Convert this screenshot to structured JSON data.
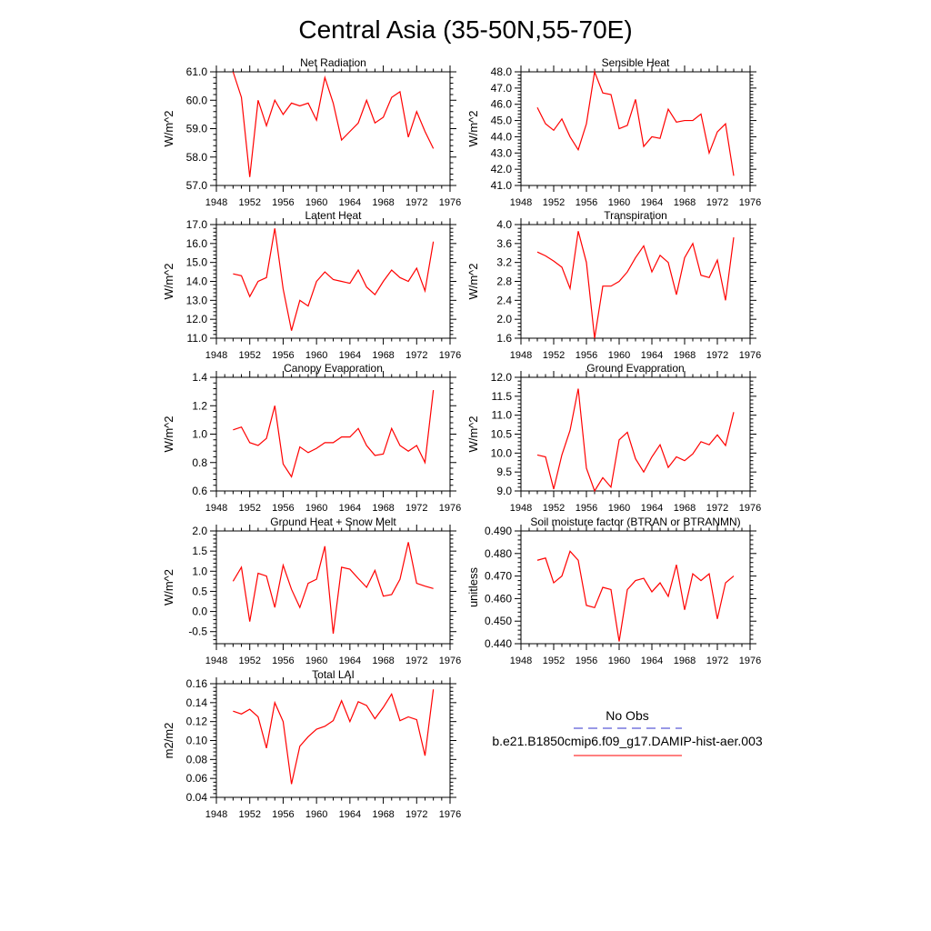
{
  "page_title": "Central Asia (35-50N,55-70E)",
  "legend": {
    "obs_label": "No Obs",
    "model_label": "b.e21.B1850cmip6.f09_g17.DAMIP-hist-aer.003",
    "obs_color": "#3333cc",
    "model_color": "#ff0000"
  },
  "chart_data": [
    {
      "type": "line",
      "title": "Net Radiation",
      "ylabel": "W/m^2",
      "xlim": [
        1948,
        1976
      ],
      "ylim": [
        57.0,
        61.0
      ],
      "xticks": [
        1948,
        1952,
        1956,
        1960,
        1964,
        1968,
        1972,
        1976
      ],
      "yticks": [
        57.0,
        58.0,
        59.0,
        60.0,
        61.0
      ],
      "ytick_labels": [
        "57.0",
        "58.0",
        "59.0",
        "60.0",
        "61.0"
      ],
      "x": [
        1950,
        1951,
        1952,
        1953,
        1954,
        1955,
        1956,
        1957,
        1958,
        1959,
        1960,
        1961,
        1962,
        1963,
        1964,
        1965,
        1966,
        1967,
        1968,
        1969,
        1970,
        1971,
        1972,
        1973,
        1974
      ],
      "series": [
        {
          "color": "#ff0000",
          "values": [
            61.0,
            60.1,
            57.3,
            60.0,
            59.1,
            60.0,
            59.5,
            59.9,
            59.8,
            59.9,
            59.3,
            60.8,
            59.9,
            58.6,
            58.9,
            59.2,
            60.0,
            59.2,
            59.4,
            60.1,
            60.3,
            58.7,
            59.6,
            58.9,
            58.3
          ]
        }
      ]
    },
    {
      "type": "line",
      "title": "Sensible Heat",
      "ylabel": "W/m^2",
      "xlim": [
        1948,
        1976
      ],
      "ylim": [
        41.0,
        48.0
      ],
      "xticks": [
        1948,
        1952,
        1956,
        1960,
        1964,
        1968,
        1972,
        1976
      ],
      "yticks": [
        41,
        42,
        43,
        44,
        45,
        46,
        47,
        48
      ],
      "ytick_labels": [
        "41.0",
        "42.0",
        "43.0",
        "44.0",
        "45.0",
        "46.0",
        "47.0",
        "48.0"
      ],
      "x": [
        1950,
        1951,
        1952,
        1953,
        1954,
        1955,
        1956,
        1957,
        1958,
        1959,
        1960,
        1961,
        1962,
        1963,
        1964,
        1965,
        1966,
        1967,
        1968,
        1969,
        1970,
        1971,
        1972,
        1973,
        1974
      ],
      "series": [
        {
          "color": "#ff0000",
          "values": [
            45.8,
            44.8,
            44.4,
            45.1,
            44.0,
            43.2,
            44.8,
            48.0,
            46.7,
            46.6,
            44.5,
            44.7,
            46.3,
            43.4,
            44.0,
            43.9,
            45.7,
            44.9,
            45.0,
            45.0,
            45.4,
            43.0,
            44.3,
            44.8,
            41.6
          ]
        }
      ]
    },
    {
      "type": "line",
      "title": "Latent Heat",
      "ylabel": "W/m^2",
      "xlim": [
        1948,
        1976
      ],
      "ylim": [
        11.0,
        17.0
      ],
      "xticks": [
        1948,
        1952,
        1956,
        1960,
        1964,
        1968,
        1972,
        1976
      ],
      "yticks": [
        11,
        12,
        13,
        14,
        15,
        16,
        17
      ],
      "ytick_labels": [
        "11.0",
        "12.0",
        "13.0",
        "14.0",
        "15.0",
        "16.0",
        "17.0"
      ],
      "x": [
        1950,
        1951,
        1952,
        1953,
        1954,
        1955,
        1956,
        1957,
        1958,
        1959,
        1960,
        1961,
        1962,
        1963,
        1964,
        1965,
        1966,
        1967,
        1968,
        1969,
        1970,
        1971,
        1972,
        1973,
        1974
      ],
      "series": [
        {
          "color": "#ff0000",
          "values": [
            14.4,
            14.3,
            13.2,
            14.0,
            14.2,
            16.8,
            13.6,
            11.4,
            13.0,
            12.7,
            14.0,
            14.5,
            14.1,
            14.0,
            13.9,
            14.6,
            13.7,
            13.3,
            14.0,
            14.6,
            14.2,
            14.0,
            14.7,
            13.5,
            16.1
          ]
        }
      ]
    },
    {
      "type": "line",
      "title": "Transpiration",
      "ylabel": "W/m^2",
      "xlim": [
        1948,
        1976
      ],
      "ylim": [
        1.6,
        4.0
      ],
      "xticks": [
        1948,
        1952,
        1956,
        1960,
        1964,
        1968,
        1972,
        1976
      ],
      "yticks": [
        1.6,
        2.0,
        2.4,
        2.8,
        3.2,
        3.6,
        4.0
      ],
      "ytick_labels": [
        "1.6",
        "2.0",
        "2.4",
        "2.8",
        "3.2",
        "3.6",
        "4.0"
      ],
      "x": [
        1950,
        1951,
        1952,
        1953,
        1954,
        1955,
        1956,
        1957,
        1958,
        1959,
        1960,
        1961,
        1962,
        1963,
        1964,
        1965,
        1966,
        1967,
        1968,
        1969,
        1970,
        1971,
        1972,
        1973,
        1974
      ],
      "series": [
        {
          "color": "#ff0000",
          "values": [
            3.42,
            3.34,
            3.23,
            3.1,
            2.65,
            3.86,
            3.2,
            1.6,
            2.7,
            2.7,
            2.8,
            3.0,
            3.3,
            3.55,
            3.0,
            3.35,
            3.2,
            2.52,
            3.3,
            3.6,
            2.93,
            2.88,
            3.25,
            2.4,
            3.73
          ]
        }
      ]
    },
    {
      "type": "line",
      "title": "Canopy Evaporation",
      "ylabel": "W/m^2",
      "xlim": [
        1948,
        1976
      ],
      "ylim": [
        0.6,
        1.4
      ],
      "xticks": [
        1948,
        1952,
        1956,
        1960,
        1964,
        1968,
        1972,
        1976
      ],
      "yticks": [
        0.6,
        0.8,
        1.0,
        1.2,
        1.4
      ],
      "ytick_labels": [
        "0.6",
        "0.8",
        "1.0",
        "1.2",
        "1.4"
      ],
      "x": [
        1950,
        1951,
        1952,
        1953,
        1954,
        1955,
        1956,
        1957,
        1958,
        1959,
        1960,
        1961,
        1962,
        1963,
        1964,
        1965,
        1966,
        1967,
        1968,
        1969,
        1970,
        1971,
        1972,
        1973,
        1974
      ],
      "series": [
        {
          "color": "#ff0000",
          "values": [
            1.03,
            1.05,
            0.94,
            0.92,
            0.97,
            1.2,
            0.79,
            0.7,
            0.91,
            0.87,
            0.9,
            0.94,
            0.94,
            0.98,
            0.98,
            1.04,
            0.92,
            0.85,
            0.86,
            1.04,
            0.92,
            0.88,
            0.92,
            0.8,
            1.31
          ]
        }
      ]
    },
    {
      "type": "line",
      "title": "Ground Evaporation",
      "ylabel": "W/m^2",
      "xlim": [
        1948,
        1976
      ],
      "ylim": [
        9.0,
        12.0
      ],
      "xticks": [
        1948,
        1952,
        1956,
        1960,
        1964,
        1968,
        1972,
        1976
      ],
      "yticks": [
        9.0,
        9.5,
        10.0,
        10.5,
        11.0,
        11.5,
        12.0
      ],
      "ytick_labels": [
        "9.0",
        "9.5",
        "10.0",
        "10.5",
        "11.0",
        "11.5",
        "12.0"
      ],
      "x": [
        1950,
        1951,
        1952,
        1953,
        1954,
        1955,
        1956,
        1957,
        1958,
        1959,
        1960,
        1961,
        1962,
        1963,
        1964,
        1965,
        1966,
        1967,
        1968,
        1969,
        1970,
        1971,
        1972,
        1973,
        1974
      ],
      "series": [
        {
          "color": "#ff0000",
          "values": [
            9.95,
            9.9,
            9.05,
            9.95,
            10.6,
            11.7,
            9.6,
            9.0,
            9.35,
            9.1,
            10.35,
            10.55,
            9.85,
            9.5,
            9.9,
            10.22,
            9.62,
            9.9,
            9.8,
            9.98,
            10.3,
            10.22,
            10.48,
            10.2,
            11.08
          ]
        }
      ]
    },
    {
      "type": "line",
      "title": "Ground Heat + Snow Melt",
      "ylabel": "W/m^2",
      "xlim": [
        1948,
        1976
      ],
      "ylim": [
        -0.8,
        2.0
      ],
      "xticks": [
        1948,
        1952,
        1956,
        1960,
        1964,
        1968,
        1972,
        1976
      ],
      "yticks": [
        -0.5,
        0.0,
        0.5,
        1.0,
        1.5,
        2.0
      ],
      "ytick_labels": [
        "-0.5",
        "0.0",
        "0.5",
        "1.0",
        "1.5",
        "2.0"
      ],
      "x": [
        1950,
        1951,
        1952,
        1953,
        1954,
        1955,
        1956,
        1957,
        1958,
        1959,
        1960,
        1961,
        1962,
        1963,
        1964,
        1965,
        1966,
        1967,
        1968,
        1969,
        1970,
        1971,
        1972,
        1973,
        1974
      ],
      "series": [
        {
          "color": "#ff0000",
          "values": [
            0.75,
            1.1,
            -0.25,
            0.95,
            0.88,
            0.1,
            1.15,
            0.55,
            0.1,
            0.7,
            0.8,
            1.62,
            -0.55,
            1.1,
            1.05,
            0.82,
            0.6,
            1.02,
            0.38,
            0.42,
            0.8,
            1.72,
            0.7,
            0.63,
            0.57
          ]
        }
      ]
    },
    {
      "type": "line",
      "title": "Soil moisture factor (BTRAN or BTRANMN)",
      "ylabel": "unitless",
      "xlim": [
        1948,
        1976
      ],
      "ylim": [
        0.44,
        0.49
      ],
      "xticks": [
        1948,
        1952,
        1956,
        1960,
        1964,
        1968,
        1972,
        1976
      ],
      "yticks": [
        0.44,
        0.45,
        0.46,
        0.47,
        0.48,
        0.49
      ],
      "ytick_labels": [
        "0.440",
        "0.450",
        "0.460",
        "0.470",
        "0.480",
        "0.490"
      ],
      "x": [
        1950,
        1951,
        1952,
        1953,
        1954,
        1955,
        1956,
        1957,
        1958,
        1959,
        1960,
        1961,
        1962,
        1963,
        1964,
        1965,
        1966,
        1967,
        1968,
        1969,
        1970,
        1971,
        1972,
        1973,
        1974
      ],
      "series": [
        {
          "color": "#ff0000",
          "values": [
            0.477,
            0.478,
            0.467,
            0.47,
            0.481,
            0.477,
            0.457,
            0.456,
            0.465,
            0.464,
            0.441,
            0.464,
            0.468,
            0.469,
            0.463,
            0.467,
            0.461,
            0.475,
            0.455,
            0.471,
            0.468,
            0.471,
            0.451,
            0.467,
            0.47
          ]
        }
      ]
    },
    {
      "type": "line",
      "title": "Total LAI",
      "ylabel": "m2/m2",
      "xlim": [
        1948,
        1976
      ],
      "ylim": [
        0.04,
        0.16
      ],
      "xticks": [
        1948,
        1952,
        1956,
        1960,
        1964,
        1968,
        1972,
        1976
      ],
      "yticks": [
        0.04,
        0.06,
        0.08,
        0.1,
        0.12,
        0.14,
        0.16
      ],
      "ytick_labels": [
        "0.04",
        "0.06",
        "0.08",
        "0.10",
        "0.12",
        "0.14",
        "0.16"
      ],
      "x": [
        1950,
        1951,
        1952,
        1953,
        1954,
        1955,
        1956,
        1957,
        1958,
        1959,
        1960,
        1961,
        1962,
        1963,
        1964,
        1965,
        1966,
        1967,
        1968,
        1969,
        1970,
        1971,
        1972,
        1973,
        1974
      ],
      "series": [
        {
          "color": "#ff0000",
          "values": [
            0.131,
            0.128,
            0.133,
            0.125,
            0.092,
            0.14,
            0.12,
            0.054,
            0.094,
            0.104,
            0.112,
            0.115,
            0.121,
            0.142,
            0.12,
            0.141,
            0.137,
            0.123,
            0.135,
            0.149,
            0.121,
            0.125,
            0.122,
            0.084,
            0.154
          ]
        }
      ]
    }
  ]
}
